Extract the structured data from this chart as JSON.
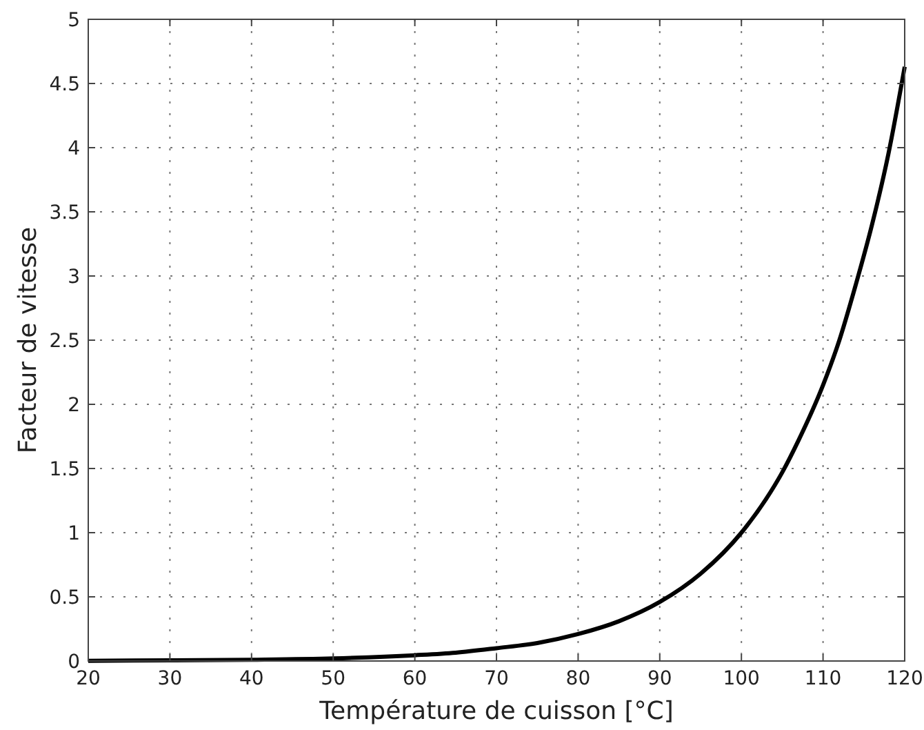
{
  "chart_data": {
    "type": "line",
    "xlabel": "Température de cuisson [°C]",
    "ylabel": "Facteur de vitesse",
    "x": [
      20,
      30,
      40,
      50,
      60,
      65,
      70,
      75,
      80,
      85,
      90,
      95,
      100,
      103,
      105,
      107,
      110,
      112,
      114,
      116,
      118,
      120
    ],
    "series": [
      {
        "color": "#000000",
        "values": [
          0.002,
          0.005,
          0.01,
          0.02,
          0.045,
          0.065,
          0.1,
          0.14,
          0.21,
          0.31,
          0.46,
          0.68,
          1.0,
          1.26,
          1.47,
          1.72,
          2.15,
          2.5,
          2.93,
          3.4,
          3.95,
          4.63
        ]
      }
    ],
    "xlim": [
      20,
      120
    ],
    "xticks": [
      20,
      30,
      40,
      50,
      60,
      70,
      80,
      90,
      100,
      110,
      120
    ],
    "ylim": [
      0,
      5
    ],
    "yticks": [
      0,
      0.5,
      1,
      1.5,
      2,
      2.5,
      3,
      3.5,
      4,
      4.5,
      5
    ],
    "grid": true,
    "marker": "none",
    "line_style": "solid"
  }
}
